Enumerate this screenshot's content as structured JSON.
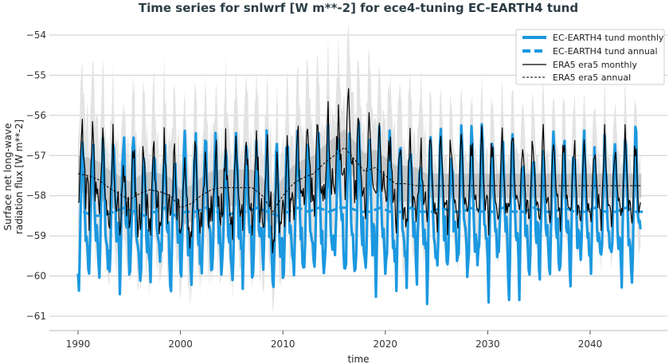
{
  "chart_data": {
    "type": "line",
    "title": "Time series for snlwrf [W m**-2] for ece4-tuning EC-EARTH4 tund",
    "xlabel": "time",
    "ylabel": [
      "Surface net long-wave",
      "radiation flux [W m**-2]"
    ],
    "xlim": [
      1987,
      2052
    ],
    "ylim": [
      -61.3,
      -53.7
    ],
    "xticks": [
      1990,
      2000,
      2010,
      2020,
      2030,
      2040
    ],
    "yticks": [
      -54,
      -55,
      -56,
      -57,
      -58,
      -59,
      -60,
      -61
    ],
    "grid": "horizontal",
    "legend_position": "top-right",
    "colors": {
      "model": "#1b98e0",
      "obs": "#000000",
      "band_light": "#e3e3e3",
      "band_dark": "#bdbdbd"
    },
    "years": [
      1990,
      2045
    ],
    "series": [
      {
        "name": "EC-EARTH4 tund monthly",
        "style": "thick-solid",
        "annual_mean": [
          -58.4,
          -58.5,
          -58.5,
          -58.4,
          -58.3,
          -58.4,
          -58.5,
          -58.4,
          -58.3,
          -58.5,
          -58.4,
          -58.4,
          -58.3,
          -58.4,
          -58.5,
          -58.4,
          -58.4,
          -58.3,
          -58.4,
          -58.5,
          -58.4,
          -58.3,
          -58.4,
          -58.3,
          -58.4,
          -58.3,
          -58.3,
          -58.4,
          -58.4,
          -58.3,
          -58.4,
          -58.4,
          -58.3,
          -58.4,
          -58.4,
          -58.3,
          -58.4,
          -58.4,
          -58.3,
          -58.4,
          -58.4,
          -58.3,
          -58.4,
          -58.4,
          -58.3,
          -58.4,
          -58.4,
          -58.3,
          -58.4,
          -58.4,
          -58.3,
          -58.4,
          -58.4,
          -58.3,
          -58.4,
          -58.4
        ],
        "seasonal_cycle": [
          -1.3,
          -1.6,
          -0.9,
          0.2,
          1.1,
          1.6,
          1.4,
          0.6,
          -0.3,
          -0.7,
          -0.5,
          -0.9
        ]
      },
      {
        "name": "EC-EARTH4 tund annual",
        "style": "thick-dashed"
      },
      {
        "name": "ERA5 era5 monthly",
        "style": "thin-solid",
        "seasonal_cycle": [
          -0.6,
          -0.9,
          -0.5,
          0.2,
          0.8,
          1.1,
          0.9,
          0.3,
          -0.2,
          -0.5,
          -0.4,
          -0.5
        ]
      },
      {
        "name": "ERA5 era5 annual",
        "style": "thin-dashed",
        "annual_mean": [
          -57.45,
          -57.5,
          -57.6,
          -57.8,
          -57.95,
          -58.1,
          -57.95,
          -57.85,
          -57.9,
          -58.0,
          -58.3,
          -58.2,
          -58.0,
          -57.85,
          -57.8,
          -57.8,
          -57.8,
          -57.8,
          -58.0,
          -58.4,
          -58.0,
          -57.7,
          -57.55,
          -57.45,
          -57.2,
          -57.0,
          -56.8,
          -57.1,
          -57.4,
          -57.3,
          -57.5,
          -57.7,
          -57.7,
          -57.75,
          -57.75,
          -57.75,
          -57.75,
          -57.75,
          -57.75,
          -57.75,
          -57.75,
          -57.75,
          -57.75,
          -57.75,
          -57.75,
          -57.75,
          -57.75,
          -57.75,
          -57.75,
          -57.75,
          -57.75,
          -57.75,
          -57.75,
          -57.75,
          -57.75,
          -57.75
        ]
      }
    ]
  }
}
